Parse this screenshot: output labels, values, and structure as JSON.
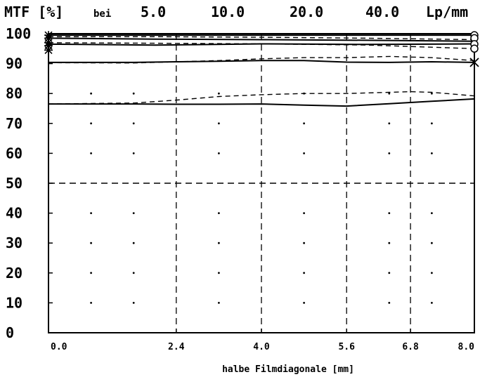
{
  "chart_data": {
    "type": "line",
    "title": "MTF [%]",
    "header": {
      "bei": "bei",
      "frequencies": [
        "5.0",
        "10.0",
        "20.0",
        "40.0"
      ],
      "unit": "Lp/mm"
    },
    "xlabel": "halbe Filmdiagonale [mm]",
    "ylabel": "MTF [%]",
    "xlim": [
      0,
      8
    ],
    "ylim": [
      0,
      100
    ],
    "x_ticks": [
      "0.0",
      "2.4",
      "4.0",
      "5.6",
      "6.8",
      "8.0"
    ],
    "y_ticks": [
      "100",
      "90",
      "80",
      "70",
      "60",
      "50",
      "40",
      "30",
      "20",
      "10",
      "0"
    ],
    "grid": "dashed verticals at 2.4, 4.0, 5.6, 6.8; dashed horizontal at 50; dot grid elsewhere",
    "series": [
      {
        "style": "solid",
        "x": [
          0,
          2,
          4,
          6,
          8
        ],
        "y": [
          99.5,
          99.5,
          99.5,
          99.5,
          99.5
        ]
      },
      {
        "style": "dashed",
        "x": [
          0,
          2,
          4,
          6,
          8
        ],
        "y": [
          99,
          99,
          98.8,
          98.5,
          98
        ]
      },
      {
        "style": "solid",
        "x": [
          0,
          2,
          4,
          6,
          8
        ],
        "y": [
          98.5,
          98.2,
          98,
          97.8,
          97.5
        ]
      },
      {
        "style": "dashed",
        "x": [
          0,
          2,
          4,
          6,
          8
        ],
        "y": [
          97,
          96.8,
          96.6,
          96.2,
          95
        ]
      },
      {
        "style": "solid",
        "x": [
          0,
          2,
          4,
          6,
          8
        ],
        "y": [
          96.5,
          96.2,
          96.6,
          96.4,
          96.6
        ]
      },
      {
        "style": "dashed",
        "x": [
          0,
          1.6,
          2.4,
          3.2,
          4.0,
          4.8,
          5.6,
          6.4,
          7.2,
          8.0
        ],
        "y": [
          90.3,
          90.2,
          90.6,
          91,
          91.6,
          92,
          92,
          92.4,
          92,
          91
        ]
      },
      {
        "style": "solid",
        "x": [
          0,
          1.6,
          2.4,
          3.2,
          4.0,
          4.8,
          5.6,
          6.4,
          7.2,
          8.0
        ],
        "y": [
          90.4,
          90.4,
          90.6,
          90.8,
          91,
          91,
          90.5,
          90.4,
          90.6,
          90.4
        ]
      },
      {
        "style": "dashed",
        "x": [
          0,
          1.6,
          2.4,
          3.2,
          4.0,
          4.8,
          5.6,
          6.4,
          6.8,
          7.2,
          8.0
        ],
        "y": [
          76.5,
          76.8,
          77.8,
          79,
          79.6,
          80,
          80,
          80.4,
          80.6,
          80.4,
          79.2
        ]
      },
      {
        "style": "solid",
        "x": [
          0,
          1.6,
          2.4,
          3.2,
          4.0,
          4.8,
          5.6,
          6.4,
          7.2,
          8.0
        ],
        "y": [
          76.5,
          76.5,
          76.4,
          76.4,
          76.5,
          76.1,
          75.8,
          76.6,
          77.4,
          78.2
        ]
      }
    ],
    "markers": [
      {
        "symbol": "star",
        "x": 0,
        "y": 99.5
      },
      {
        "symbol": "star",
        "x": 0,
        "y": 98.5
      },
      {
        "symbol": "star",
        "x": 0,
        "y": 97
      },
      {
        "symbol": "star",
        "x": 0,
        "y": 96
      },
      {
        "symbol": "star",
        "x": 0,
        "y": 94.5
      },
      {
        "symbol": "circle",
        "x": 8,
        "y": 99.5
      },
      {
        "symbol": "circle",
        "x": 8,
        "y": 98.5
      },
      {
        "symbol": "circle",
        "x": 8,
        "y": 96.5
      },
      {
        "symbol": "circle",
        "x": 8,
        "y": 95
      },
      {
        "symbol": "cross",
        "x": 8,
        "y": 90.4
      }
    ]
  }
}
